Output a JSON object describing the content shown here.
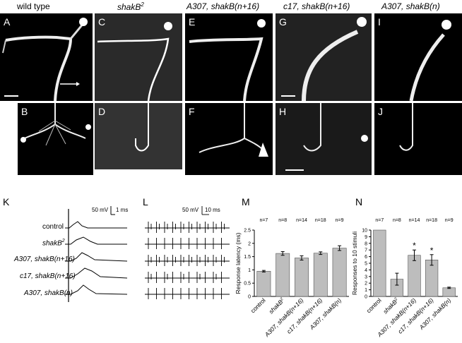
{
  "columns": [
    {
      "id": "wt",
      "label": "wild type"
    },
    {
      "id": "shakB2",
      "label_main": "shakB",
      "label_sup": "2"
    },
    {
      "id": "a307n16",
      "label": "A307, shakB(n+16)"
    },
    {
      "id": "c17n16",
      "label": "c17, shakB(n+16)"
    },
    {
      "id": "a307n",
      "label": "A307, shakB(n)"
    }
  ],
  "panel_letters": [
    "A",
    "B",
    "C",
    "D",
    "E",
    "F",
    "G",
    "H",
    "I",
    "J",
    "K",
    "L",
    "M",
    "N"
  ],
  "traces": {
    "labels": [
      {
        "text": "control",
        "italic": false
      },
      {
        "text": "shakB",
        "sup": "2",
        "italic": true
      },
      {
        "text": "A307, shakB(n+16)",
        "italic": true
      },
      {
        "text": "c17, shakB(n+16)",
        "italic": true
      },
      {
        "text": "A307, shakB(n)",
        "italic": true
      }
    ],
    "scale_K": {
      "amp": "50 mV",
      "time": "1 ms"
    },
    "scale_L": {
      "amp": "50 mV",
      "time": "10 ms"
    }
  },
  "chart_data": [
    {
      "type": "bar",
      "ylabel": "Response latency (ms)",
      "categories": [
        "control",
        "shakB2",
        "A307, shakB(n+16)",
        "c17, shakB(n+16)",
        "A307, shakB(n)"
      ],
      "values": [
        0.95,
        1.62,
        1.45,
        1.63,
        1.82
      ],
      "errors": [
        0.03,
        0.07,
        0.08,
        0.05,
        0.09
      ],
      "n_labels": [
        "n=7",
        "n=8",
        "n=14",
        "n=18",
        "n=9"
      ],
      "ylim": [
        0,
        2.5
      ],
      "yticks": [
        0,
        0.5,
        1,
        1.5,
        2,
        2.5
      ],
      "ytick_labels": [
        "0",
        "0.5",
        "1",
        "1.5",
        "2",
        "2.5"
      ]
    },
    {
      "type": "bar",
      "ylabel": "Responses to 10 stimuli",
      "categories": [
        "control",
        "shakB2",
        "A307, shakB(n+16)",
        "c17, shakB(n+16)",
        "A307, shakB(n)"
      ],
      "values": [
        10,
        2.6,
        6.2,
        5.5,
        1.3
      ],
      "errors": [
        0,
        0.9,
        0.8,
        0.8,
        0.1
      ],
      "n_labels": [
        "n=7",
        "n=8",
        "n=14",
        "n=18",
        "n=9"
      ],
      "significance": [
        "",
        "",
        "*",
        "*",
        ""
      ],
      "ylim": [
        0,
        10
      ],
      "yticks": [
        0,
        1,
        2,
        3,
        4,
        5,
        6,
        7,
        8,
        9,
        10
      ],
      "ytick_labels": [
        "0",
        "1",
        "2",
        "3",
        "4",
        "5",
        "6",
        "7",
        "8",
        "9",
        "10"
      ]
    }
  ]
}
